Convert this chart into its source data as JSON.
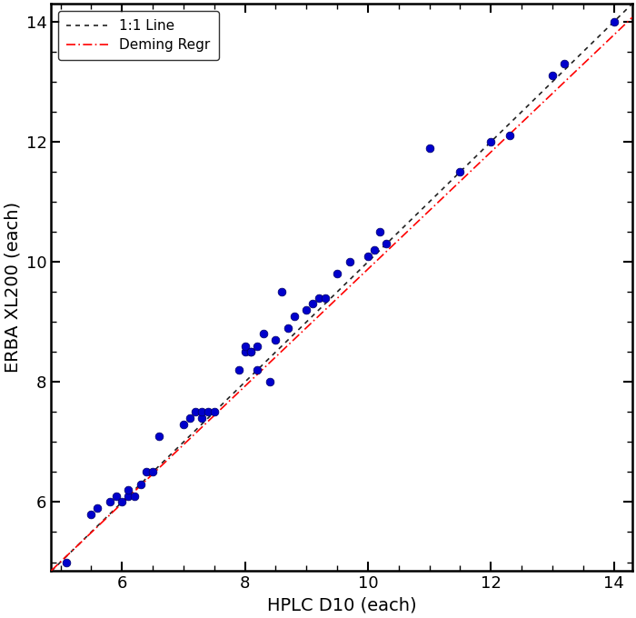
{
  "x_data": [
    5.1,
    5.5,
    5.6,
    5.8,
    5.9,
    6.0,
    6.1,
    6.1,
    6.2,
    6.3,
    6.4,
    6.5,
    6.6,
    7.0,
    7.1,
    7.2,
    7.3,
    7.3,
    7.4,
    7.5,
    7.9,
    8.0,
    8.0,
    8.1,
    8.1,
    8.2,
    8.2,
    8.3,
    8.4,
    8.5,
    8.6,
    8.7,
    8.8,
    9.0,
    9.1,
    9.2,
    9.3,
    9.5,
    9.7,
    10.0,
    10.1,
    10.2,
    10.3,
    11.0,
    11.5,
    12.0,
    12.3,
    13.0,
    13.2,
    14.0
  ],
  "y_data": [
    5.0,
    5.8,
    5.9,
    6.0,
    6.1,
    6.0,
    6.1,
    6.2,
    6.1,
    6.3,
    6.5,
    6.5,
    7.1,
    7.3,
    7.4,
    7.5,
    7.4,
    7.5,
    7.5,
    7.5,
    8.2,
    8.5,
    8.6,
    8.5,
    8.5,
    8.6,
    8.2,
    8.8,
    8.0,
    8.7,
    9.5,
    8.9,
    9.1,
    9.2,
    9.3,
    9.4,
    9.4,
    9.8,
    10.0,
    10.1,
    10.2,
    10.5,
    10.3,
    11.9,
    11.5,
    12.0,
    12.1,
    13.1,
    13.3,
    14.0
  ],
  "scatter_color": "#0000CC",
  "scatter_size": 40,
  "scatter_marker": "o",
  "deming_slope": 0.975,
  "deming_intercept": 0.13,
  "line11_slope": 1.0,
  "line11_intercept": 0.0,
  "xlim": [
    4.85,
    14.3
  ],
  "ylim": [
    4.85,
    14.3
  ],
  "xticks": [
    6,
    8,
    10,
    12,
    14
  ],
  "yticks": [
    6,
    8,
    10,
    12,
    14
  ],
  "xlabel": "HPLC D10 (each)",
  "ylabel": "ERBA XL200 (each)",
  "legend_deming": "Deming Regr",
  "legend_11": "1:1 Line",
  "deming_color": "#FF0000",
  "line11_color": "#222222",
  "legend_fontsize": 11,
  "xlabel_fontsize": 14,
  "ylabel_fontsize": 14,
  "tick_labelsize": 13,
  "background_color": "#ffffff"
}
